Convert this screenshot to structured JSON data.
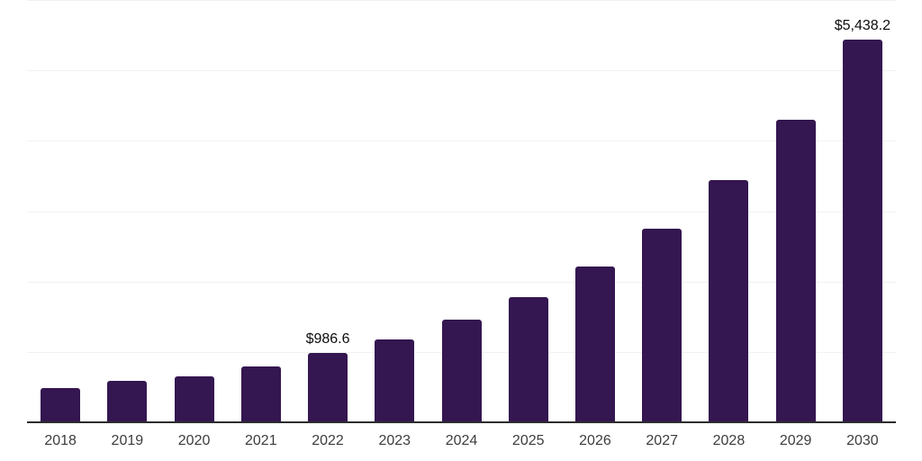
{
  "chart_data": {
    "type": "bar",
    "title": "",
    "xlabel": "",
    "ylabel": "",
    "categories": [
      "2018",
      "2019",
      "2020",
      "2021",
      "2022",
      "2023",
      "2024",
      "2025",
      "2026",
      "2027",
      "2028",
      "2029",
      "2030"
    ],
    "values": [
      485,
      585,
      655,
      790,
      986.6,
      1180,
      1462,
      1780,
      2212,
      2750,
      3445,
      4302,
      5438.2
    ],
    "annotations": [
      {
        "category_index": 4,
        "text": "$986.6"
      },
      {
        "category_index": 12,
        "text": "$5,438.2"
      }
    ],
    "ylim": [
      0,
      6000
    ],
    "gridline_values": [
      1000,
      2000,
      3000,
      4000,
      5000,
      6000
    ],
    "grid": true,
    "legend": false,
    "colors": {
      "bar": "#341650",
      "gridline": "#f2f2f2",
      "axis_line": "#2d2d2d",
      "tick_label": "#3d3d3d",
      "annotation_label": "#0d0d0d",
      "background": "#ffffff"
    }
  }
}
